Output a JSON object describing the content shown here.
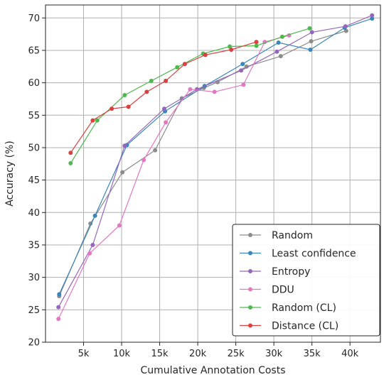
{
  "chart_data": {
    "type": "line",
    "xlabel": "Cumulative Annotation Costs",
    "ylabel": "Accuracy (%)",
    "xlim": [
      0,
      44000
    ],
    "ylim": [
      20,
      72
    ],
    "x_ticks": [
      5000,
      10000,
      15000,
      20000,
      25000,
      30000,
      35000,
      40000
    ],
    "x_tick_labels": [
      "5k",
      "10k",
      "15k",
      "20k",
      "25k",
      "30k",
      "35k",
      "40k"
    ],
    "y_ticks": [
      20,
      25,
      30,
      35,
      40,
      45,
      50,
      55,
      60,
      65,
      70
    ],
    "y_tick_labels": [
      "20",
      "25",
      "30",
      "35",
      "40",
      "45",
      "50",
      "55",
      "60",
      "65",
      "70"
    ],
    "grid": true,
    "legend_position": "lower-right",
    "series": [
      {
        "name": "Random",
        "color": "#8c8c8c",
        "points": [
          [
            1800,
            27.1
          ],
          [
            5900,
            38.3
          ],
          [
            10100,
            46.2
          ],
          [
            14400,
            49.6
          ],
          [
            17900,
            57.6
          ],
          [
            20800,
            59.2
          ],
          [
            22600,
            60.1
          ],
          [
            26400,
            62.5
          ],
          [
            30900,
            64.1
          ],
          [
            34900,
            66.4
          ],
          [
            39500,
            68.0
          ]
        ]
      },
      {
        "name": "Least confidence",
        "color": "#3a86b8",
        "points": [
          [
            1800,
            27.4
          ],
          [
            6500,
            39.5
          ],
          [
            10700,
            50.4
          ],
          [
            15700,
            55.6
          ],
          [
            20900,
            59.5
          ],
          [
            25900,
            62.9
          ],
          [
            30600,
            66.2
          ],
          [
            34800,
            65.1
          ],
          [
            39300,
            68.5
          ],
          [
            42900,
            69.9
          ]
        ]
      },
      {
        "name": "Entropy",
        "color": "#9467bd",
        "points": [
          [
            1700,
            25.4
          ],
          [
            6200,
            35.0
          ],
          [
            10400,
            50.3
          ],
          [
            15600,
            56.0
          ],
          [
            19900,
            59.0
          ],
          [
            25700,
            61.9
          ],
          [
            30400,
            64.8
          ],
          [
            35000,
            67.8
          ],
          [
            39400,
            68.7
          ],
          [
            42900,
            70.4
          ]
        ]
      },
      {
        "name": "DDU",
        "color": "#e377c2",
        "points": [
          [
            1700,
            23.6
          ],
          [
            5800,
            33.7
          ],
          [
            9700,
            38.0
          ],
          [
            12900,
            48.1
          ],
          [
            15800,
            53.9
          ],
          [
            19000,
            59.0
          ],
          [
            22200,
            58.6
          ],
          [
            26000,
            59.7
          ],
          [
            28800,
            66.3
          ],
          [
            32000,
            67.3
          ]
        ]
      },
      {
        "name": "Random (CL)",
        "color": "#4db84d",
        "points": [
          [
            3300,
            47.6
          ],
          [
            6800,
            54.2
          ],
          [
            10400,
            58.1
          ],
          [
            13900,
            60.3
          ],
          [
            17300,
            62.4
          ],
          [
            20700,
            64.5
          ],
          [
            24200,
            65.6
          ],
          [
            27700,
            65.7
          ],
          [
            31100,
            67.1
          ],
          [
            34700,
            68.4
          ]
        ]
      },
      {
        "name": "Distance (CL)",
        "color": "#d94141",
        "points": [
          [
            3300,
            49.2
          ],
          [
            6200,
            54.2
          ],
          [
            8700,
            56.0
          ],
          [
            10900,
            56.3
          ],
          [
            13300,
            58.6
          ],
          [
            15800,
            60.3
          ],
          [
            18300,
            62.9
          ],
          [
            21000,
            64.3
          ],
          [
            24400,
            65.1
          ],
          [
            27700,
            66.3
          ]
        ]
      }
    ]
  }
}
